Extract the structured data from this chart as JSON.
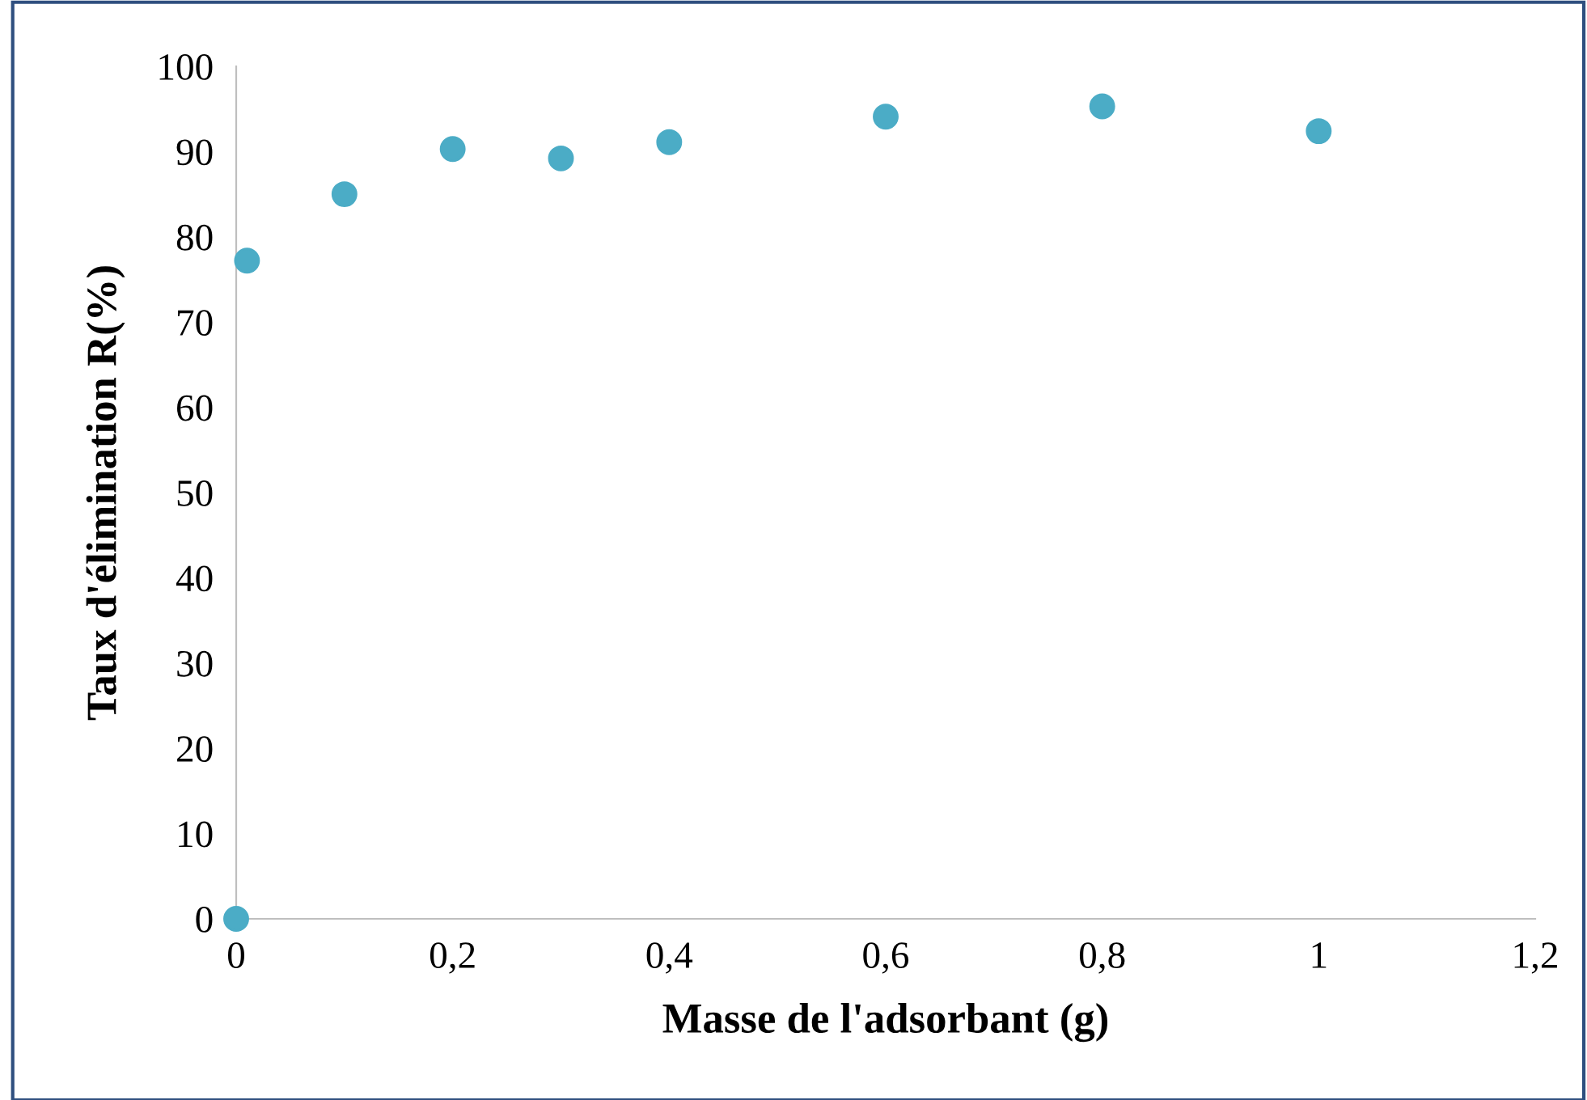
{
  "chart_data": {
    "type": "scatter",
    "xlabel": "Masse de l'adsorbant (g)",
    "ylabel": "Taux d'élimination R(%)",
    "x": [
      0,
      0.01,
      0.1,
      0.2,
      0.3,
      0.4,
      0.6,
      0.8,
      1.0
    ],
    "series": [
      {
        "color": "#4bacc6",
        "values": [
          0,
          77.2,
          85.0,
          90.3,
          89.2,
          91.1,
          94.1,
          95.3,
          92.4
        ]
      }
    ],
    "xlim": [
      0,
      1.2
    ],
    "xticks": [
      {
        "value": 0,
        "label": "0"
      },
      {
        "value": 0.2,
        "label": "0,2"
      },
      {
        "value": 0.4,
        "label": "0,4"
      },
      {
        "value": 0.6,
        "label": "0,6"
      },
      {
        "value": 0.8,
        "label": "0,8"
      },
      {
        "value": 1,
        "label": "1"
      },
      {
        "value": 1.2,
        "label": "1,2"
      }
    ],
    "ylim": [
      0,
      100
    ],
    "yticks": [
      0,
      10,
      20,
      30,
      40,
      50,
      60,
      70,
      80,
      90,
      100
    ],
    "grid": false,
    "legend": false,
    "marker": "circle"
  }
}
